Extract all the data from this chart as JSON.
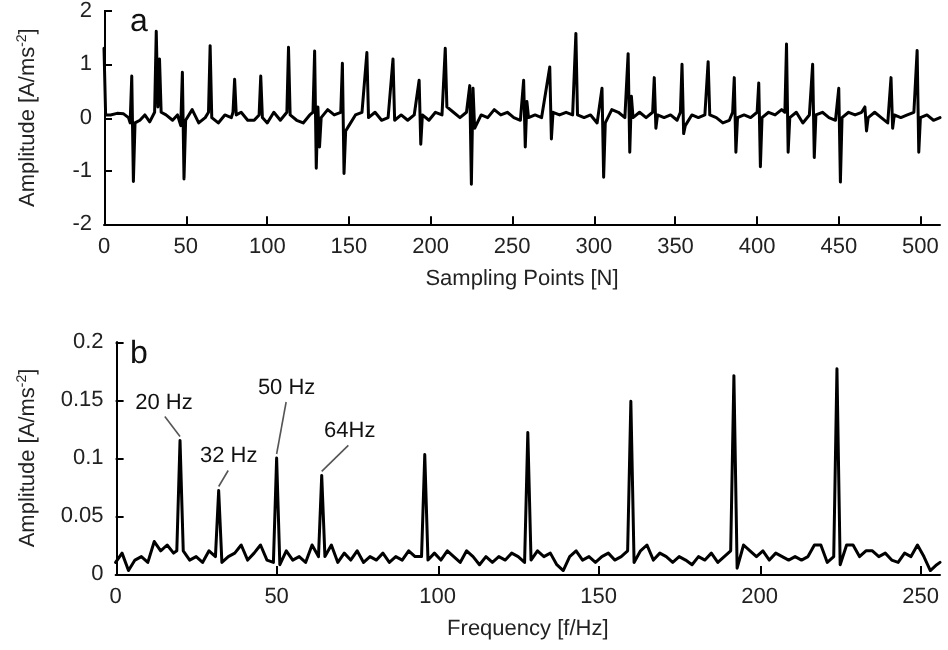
{
  "chart_data": [
    {
      "type": "line",
      "title": "a",
      "xlabel": "Sampling Points [N]",
      "ylabel": "Amplitude [A/ms$^{-2}$]",
      "xlim": [
        0,
        512
      ],
      "xticks": [
        0,
        50,
        100,
        150,
        200,
        250,
        300,
        350,
        400,
        450,
        500
      ],
      "ylim": [
        -2,
        2
      ],
      "yticks": [
        -2,
        -1,
        0,
        1,
        2
      ],
      "marker": "none",
      "line_style": "solid",
      "series": [
        {
          "color": "#000000",
          "x": [
            0,
            1,
            4,
            8,
            12,
            15,
            16,
            17,
            18,
            19,
            22,
            25,
            28,
            31,
            32,
            33,
            34,
            35,
            38,
            42,
            45,
            47,
            48,
            49,
            50,
            54,
            58,
            62,
            64,
            65,
            66,
            70,
            74,
            78,
            79,
            80,
            81,
            84,
            88,
            92,
            95,
            96,
            97,
            100,
            104,
            108,
            112,
            113,
            114,
            118,
            122,
            126,
            128,
            129,
            130,
            131,
            132,
            133,
            137,
            141,
            145,
            146,
            147,
            148,
            150,
            154,
            158,
            161,
            162,
            166,
            170,
            174,
            177,
            178,
            182,
            186,
            190,
            193,
            194,
            195,
            199,
            203,
            207,
            209,
            210,
            214,
            218,
            222,
            224,
            225,
            226,
            227,
            231,
            235,
            239,
            243,
            247,
            251,
            255,
            257,
            258,
            259,
            260,
            264,
            268,
            273,
            274,
            275,
            279,
            283,
            287,
            289,
            290,
            294,
            298,
            302,
            305,
            306,
            307,
            311,
            315,
            319,
            321,
            322,
            323,
            324,
            328,
            332,
            336,
            337,
            338,
            339,
            343,
            347,
            351,
            353,
            354,
            355,
            356,
            360,
            364,
            368,
            370,
            371,
            375,
            379,
            383,
            385,
            386,
            387,
            388,
            392,
            396,
            400,
            401,
            402,
            403,
            407,
            411,
            415,
            417,
            418,
            419,
            420,
            424,
            428,
            432,
            434,
            435,
            436,
            440,
            444,
            448,
            450,
            451,
            452,
            456,
            460,
            464,
            466,
            467,
            468,
            472,
            476,
            480,
            482,
            483,
            484,
            488,
            492,
            496,
            498,
            499,
            500,
            504,
            508,
            512
          ],
          "values": [
            1.3,
            0.05,
            0.05,
            0.08,
            0.07,
            0.0,
            -0.1,
            0.78,
            -1.2,
            -0.1,
            -0.05,
            0.05,
            -0.08,
            0.1,
            1.62,
            0.2,
            1.1,
            0.1,
            0.05,
            -0.05,
            0.05,
            -0.15,
            0.85,
            -1.15,
            -0.05,
            0.15,
            -0.1,
            0.0,
            0.1,
            1.35,
            0.0,
            -0.1,
            0.05,
            0.0,
            0.1,
            0.72,
            0.05,
            0.1,
            -0.05,
            -0.05,
            0.05,
            0.78,
            0.0,
            -0.1,
            0.1,
            -0.05,
            0.1,
            1.32,
            0.05,
            -0.05,
            -0.1,
            0.05,
            0.1,
            1.25,
            -0.95,
            0.2,
            -0.55,
            0.0,
            0.15,
            0.05,
            0.1,
            1.02,
            -1.05,
            -0.25,
            -0.15,
            0.05,
            0.1,
            1.22,
            0.0,
            0.1,
            -0.05,
            0.0,
            1.1,
            -0.05,
            0.05,
            -0.05,
            0.05,
            0.7,
            -0.5,
            0.05,
            -0.05,
            0.1,
            0.05,
            1.3,
            0.2,
            0.1,
            0.0,
            0.1,
            0.6,
            -1.25,
            0.55,
            -0.2,
            0.05,
            0.0,
            0.15,
            0.05,
            0.1,
            0.0,
            -0.05,
            0.7,
            -0.55,
            0.3,
            0.0,
            0.05,
            0.0,
            0.95,
            -0.4,
            0.1,
            0.05,
            0.1,
            0.05,
            1.58,
            0.05,
            0.0,
            0.05,
            -0.1,
            0.55,
            -1.12,
            -0.1,
            0.15,
            0.1,
            0.0,
            1.2,
            -0.65,
            0.4,
            0.0,
            0.1,
            0.0,
            0.1,
            0.75,
            -0.2,
            0.05,
            0.0,
            0.05,
            -0.05,
            0.1,
            1.0,
            -0.3,
            -0.15,
            0.05,
            0.0,
            0.05,
            1.05,
            0.05,
            0.0,
            -0.1,
            -0.05,
            0.1,
            0.75,
            -0.65,
            0.0,
            0.05,
            0.0,
            0.1,
            0.65,
            -0.92,
            0.0,
            0.1,
            0.05,
            0.15,
            0.1,
            1.38,
            -0.65,
            0.0,
            0.1,
            -0.1,
            0.05,
            1.0,
            -0.75,
            0.05,
            0.1,
            0.0,
            -0.05,
            0.55,
            -1.21,
            0.0,
            0.1,
            0.05,
            0.1,
            0.2,
            -0.25,
            0.0,
            0.1,
            0.0,
            -0.1,
            0.75,
            -0.2,
            0.05,
            0.0,
            0.05,
            0.1,
            1.26,
            -0.65,
            0.0,
            0.05,
            -0.05,
            0.0
          ]
        }
      ]
    },
    {
      "type": "line",
      "title": "b",
      "xlabel": "Frequency [f/Hz]",
      "ylabel": "Amplitude [A/ms$^{-2}$]",
      "xlim": [
        0,
        256
      ],
      "xticks": [
        0,
        50,
        100,
        150,
        200,
        250
      ],
      "ylim": [
        0,
        0.2
      ],
      "yticks": [
        0,
        0.05,
        0.1,
        0.15,
        0.2
      ],
      "marker": "none",
      "line_style": "solid",
      "annotations": [
        {
          "text": "20 Hz",
          "x": 20,
          "y": 0.115
        },
        {
          "text": "32 Hz",
          "x": 32,
          "y": 0.072
        },
        {
          "text": "50 Hz",
          "x": 50,
          "y": 0.1
        },
        {
          "text": "64Hz",
          "x": 64,
          "y": 0.085
        }
      ],
      "series": [
        {
          "color": "#000000",
          "x": [
            0,
            2,
            4,
            6,
            8,
            10,
            12,
            14,
            16,
            18,
            19,
            20,
            21,
            23,
            25,
            27,
            29,
            31,
            32,
            33,
            35,
            37,
            39,
            41,
            43,
            45,
            47,
            49,
            50,
            51,
            53,
            55,
            57,
            59,
            61,
            63,
            64,
            65,
            67,
            69,
            71,
            73,
            75,
            77,
            79,
            81,
            83,
            85,
            87,
            89,
            91,
            93,
            95,
            96,
            97,
            99,
            101,
            103,
            105,
            107,
            109,
            111,
            113,
            115,
            117,
            119,
            121,
            123,
            125,
            127,
            128,
            129,
            131,
            133,
            135,
            137,
            139,
            141,
            143,
            145,
            147,
            149,
            151,
            153,
            155,
            157,
            159,
            160,
            161,
            163,
            165,
            167,
            169,
            171,
            173,
            175,
            177,
            179,
            181,
            183,
            185,
            187,
            189,
            191,
            192,
            193,
            195,
            197,
            199,
            201,
            203,
            205,
            207,
            209,
            211,
            213,
            215,
            217,
            219,
            221,
            223,
            224,
            225,
            227,
            229,
            231,
            233,
            235,
            237,
            239,
            241,
            243,
            245,
            247,
            249,
            251,
            253,
            255,
            256
          ],
          "values": [
            0.01,
            0.018,
            0.003,
            0.012,
            0.015,
            0.01,
            0.028,
            0.02,
            0.025,
            0.018,
            0.02,
            0.115,
            0.02,
            0.012,
            0.015,
            0.01,
            0.02,
            0.015,
            0.072,
            0.01,
            0.015,
            0.018,
            0.025,
            0.012,
            0.018,
            0.025,
            0.012,
            0.01,
            0.1,
            0.008,
            0.02,
            0.012,
            0.015,
            0.01,
            0.025,
            0.015,
            0.085,
            0.015,
            0.025,
            0.01,
            0.018,
            0.012,
            0.02,
            0.01,
            0.015,
            0.012,
            0.018,
            0.01,
            0.015,
            0.012,
            0.02,
            0.015,
            0.015,
            0.103,
            0.012,
            0.018,
            0.012,
            0.02,
            0.015,
            0.01,
            0.02,
            0.015,
            0.008,
            0.015,
            0.01,
            0.015,
            0.012,
            0.018,
            0.015,
            0.01,
            0.122,
            0.012,
            0.02,
            0.015,
            0.018,
            0.008,
            0.003,
            0.015,
            0.02,
            0.012,
            0.015,
            0.01,
            0.015,
            0.018,
            0.012,
            0.015,
            0.02,
            0.149,
            0.01,
            0.02,
            0.025,
            0.012,
            0.018,
            0.015,
            0.01,
            0.015,
            0.012,
            0.008,
            0.015,
            0.012,
            0.018,
            0.01,
            0.015,
            0.02,
            0.171,
            0.005,
            0.025,
            0.02,
            0.015,
            0.02,
            0.012,
            0.018,
            0.015,
            0.012,
            0.015,
            0.012,
            0.015,
            0.025,
            0.025,
            0.01,
            0.015,
            0.177,
            0.008,
            0.025,
            0.025,
            0.015,
            0.02,
            0.02,
            0.015,
            0.018,
            0.012,
            0.01,
            0.018,
            0.015,
            0.025,
            0.015,
            0.003,
            0.008,
            0.01
          ]
        }
      ]
    }
  ]
}
